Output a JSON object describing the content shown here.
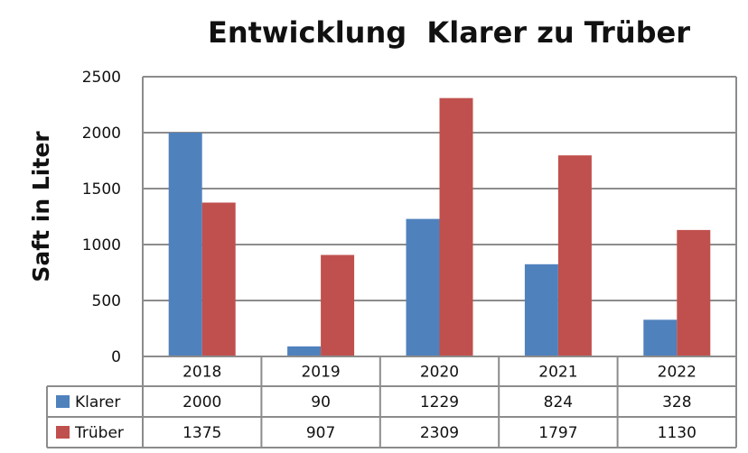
{
  "chart_data": {
    "type": "bar",
    "title": "Entwicklung  Klarer zu Trüber",
    "ylabel": "Saft in Liter",
    "xlabel": "",
    "ylim": [
      0,
      2500
    ],
    "yticks": [
      0,
      500,
      1000,
      1500,
      2000,
      2500
    ],
    "grid": true,
    "legend": "data-table-left",
    "categories": [
      "2018",
      "2019",
      "2020",
      "2021",
      "2022"
    ],
    "series": [
      {
        "name": "Klarer",
        "color": "#4f81bd",
        "values": [
          2000,
          90,
          1229,
          824,
          328
        ]
      },
      {
        "name": "Trüber",
        "color": "#c0504d",
        "values": [
          1375,
          907,
          2309,
          1797,
          1130
        ]
      }
    ]
  }
}
